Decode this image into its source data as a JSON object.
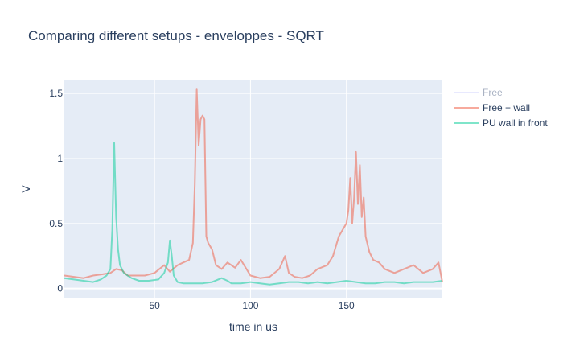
{
  "chart_data": {
    "type": "line",
    "title": "Comparing different setups - enveloppes - SQRT",
    "xlabel": "time in us",
    "ylabel": "V",
    "xlim": [
      3,
      200
    ],
    "ylim": [
      -0.07,
      1.6
    ],
    "x_ticks": [
      50,
      100,
      150
    ],
    "x_tick_labels": [
      "50",
      "100",
      "150"
    ],
    "y_ticks": [
      0,
      0.5,
      1,
      1.5
    ],
    "y_tick_labels": [
      "0",
      "0.5",
      "1",
      "1.5"
    ],
    "grid": true,
    "legend_position": "right",
    "plot_bgcolor": "#e5ecf6",
    "series": [
      {
        "name": "Free",
        "color": "#636efa",
        "visible": false,
        "x": [],
        "y": []
      },
      {
        "name": "Free + wall",
        "color": "#ef553b",
        "visible": true,
        "x": [
          3,
          8,
          13,
          18,
          23,
          27,
          30,
          33,
          36,
          40,
          45,
          50,
          55,
          58,
          62,
          65,
          68,
          70,
          71,
          72,
          73,
          74,
          75,
          76,
          77,
          78,
          80,
          82,
          85,
          88,
          92,
          95,
          100,
          105,
          110,
          115,
          118,
          120,
          123,
          127,
          131,
          135,
          140,
          143,
          146,
          148,
          150,
          151,
          152,
          153,
          154,
          155,
          156,
          157,
          158,
          159,
          160,
          162,
          164,
          167,
          170,
          175,
          180,
          185,
          190,
          195,
          198,
          200
        ],
        "y": [
          0.1,
          0.09,
          0.08,
          0.1,
          0.11,
          0.12,
          0.15,
          0.14,
          0.1,
          0.1,
          0.1,
          0.12,
          0.18,
          0.13,
          0.18,
          0.2,
          0.22,
          0.35,
          0.8,
          1.53,
          1.1,
          1.3,
          1.33,
          1.3,
          0.4,
          0.35,
          0.3,
          0.18,
          0.15,
          0.2,
          0.16,
          0.22,
          0.1,
          0.08,
          0.09,
          0.15,
          0.25,
          0.12,
          0.09,
          0.08,
          0.1,
          0.15,
          0.18,
          0.25,
          0.4,
          0.45,
          0.5,
          0.6,
          0.85,
          0.5,
          0.7,
          1.05,
          0.65,
          0.95,
          0.55,
          0.7,
          0.4,
          0.28,
          0.22,
          0.2,
          0.15,
          0.12,
          0.15,
          0.18,
          0.12,
          0.15,
          0.2,
          0.05
        ]
      },
      {
        "name": "PU wall in front",
        "color": "#00cc96",
        "visible": true,
        "x": [
          3,
          8,
          13,
          18,
          22,
          25,
          27,
          28,
          29,
          30,
          31,
          32,
          34,
          38,
          42,
          47,
          52,
          55,
          57,
          58,
          59,
          60,
          62,
          65,
          70,
          75,
          80,
          85,
          88,
          90,
          95,
          100,
          105,
          110,
          115,
          120,
          125,
          130,
          135,
          140,
          145,
          150,
          155,
          160,
          165,
          170,
          175,
          180,
          185,
          190,
          195,
          200
        ],
        "y": [
          0.08,
          0.07,
          0.06,
          0.05,
          0.07,
          0.1,
          0.15,
          0.45,
          1.12,
          0.55,
          0.3,
          0.18,
          0.12,
          0.08,
          0.06,
          0.06,
          0.07,
          0.12,
          0.2,
          0.37,
          0.25,
          0.1,
          0.05,
          0.04,
          0.04,
          0.04,
          0.05,
          0.08,
          0.06,
          0.04,
          0.04,
          0.05,
          0.04,
          0.03,
          0.04,
          0.05,
          0.05,
          0.04,
          0.05,
          0.04,
          0.05,
          0.06,
          0.05,
          0.04,
          0.04,
          0.05,
          0.05,
          0.04,
          0.05,
          0.05,
          0.05,
          0.06
        ]
      }
    ]
  }
}
